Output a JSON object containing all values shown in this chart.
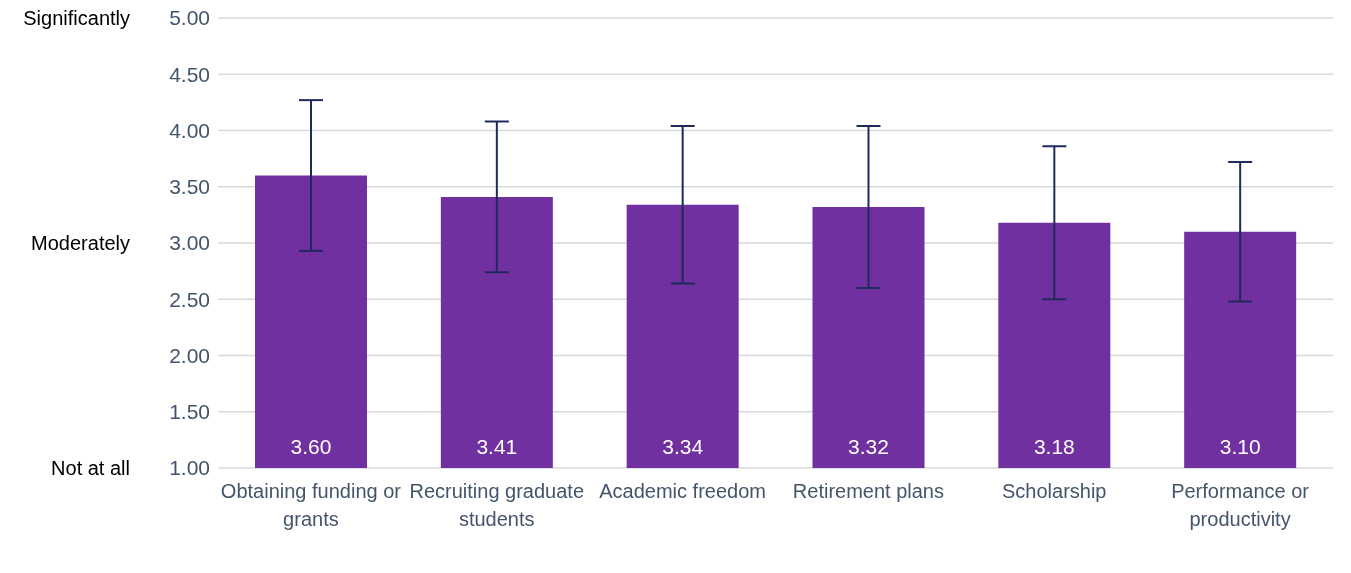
{
  "chart_data": {
    "type": "bar",
    "categories": [
      "Obtaining funding or grants",
      "Recruiting graduate students",
      "Academic freedom",
      "Retirement plans",
      "Scholarship",
      "Performance or productivity"
    ],
    "values": [
      3.6,
      3.41,
      3.34,
      3.32,
      3.18,
      3.1
    ],
    "value_labels": [
      "3.60",
      "3.41",
      "3.34",
      "3.32",
      "3.18",
      "3.10"
    ],
    "color": "#7030a0",
    "errors": [
      0.67,
      0.67,
      0.7,
      0.72,
      0.68,
      0.62
    ],
    "ylim": [
      1,
      5
    ],
    "yticks": [
      {
        "value": 1,
        "label": "1.00"
      },
      {
        "value": 1.5,
        "label": "1.50"
      },
      {
        "value": 2,
        "label": "2.00"
      },
      {
        "value": 2.5,
        "label": "2.50"
      },
      {
        "value": 3,
        "label": "3.00"
      },
      {
        "value": 3.5,
        "label": "3.50"
      },
      {
        "value": 4,
        "label": "4.00"
      },
      {
        "value": 4.5,
        "label": "4.50"
      },
      {
        "value": 5,
        "label": "5.00"
      }
    ],
    "annotations": [
      "Significantly",
      "Moderately",
      "Not at all"
    ],
    "data_labels": true,
    "grid": "y",
    "legend": false
  }
}
